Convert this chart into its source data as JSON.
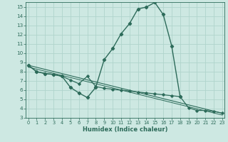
{
  "title": "",
  "xlabel": "Humidex (Indice chaleur)",
  "xlim": [
    0,
    23
  ],
  "ylim": [
    3,
    15.5
  ],
  "xticks": [
    0,
    1,
    2,
    3,
    4,
    5,
    6,
    7,
    8,
    9,
    10,
    11,
    12,
    13,
    14,
    15,
    16,
    17,
    18,
    19,
    20,
    21,
    22,
    23
  ],
  "yticks": [
    3,
    4,
    5,
    6,
    7,
    8,
    9,
    10,
    11,
    12,
    13,
    14,
    15
  ],
  "bg_color": "#cde8e2",
  "grid_color": "#b0d4cc",
  "line_color": "#2d6b5a",
  "curve1": {
    "x": [
      0,
      1,
      2,
      3,
      4,
      5,
      6,
      7,
      8,
      9,
      10,
      11,
      12,
      13,
      14,
      15,
      16,
      17,
      18
    ],
    "y": [
      8.7,
      8.0,
      7.8,
      7.7,
      7.5,
      6.3,
      5.7,
      5.2,
      6.3,
      9.3,
      10.5,
      12.1,
      13.2,
      14.8,
      15.0,
      15.5,
      14.2,
      10.8,
      5.3
    ]
  },
  "curve2": {
    "x": [
      0,
      1,
      2,
      3,
      4,
      5,
      6,
      7,
      8,
      9,
      10,
      11,
      12,
      13,
      14,
      15,
      16,
      17,
      18,
      19,
      20,
      21,
      22,
      23
    ],
    "y": [
      8.7,
      8.0,
      7.8,
      7.7,
      7.5,
      7.1,
      6.7,
      7.5,
      6.4,
      6.2,
      6.1,
      6.0,
      5.9,
      5.8,
      5.7,
      5.6,
      5.5,
      5.4,
      5.3,
      4.1,
      3.8,
      3.8,
      3.7,
      3.5
    ]
  },
  "line1": {
    "x": [
      0,
      23
    ],
    "y": [
      8.7,
      3.5
    ]
  },
  "line2": {
    "x": [
      0,
      23
    ],
    "y": [
      8.5,
      3.3
    ]
  }
}
